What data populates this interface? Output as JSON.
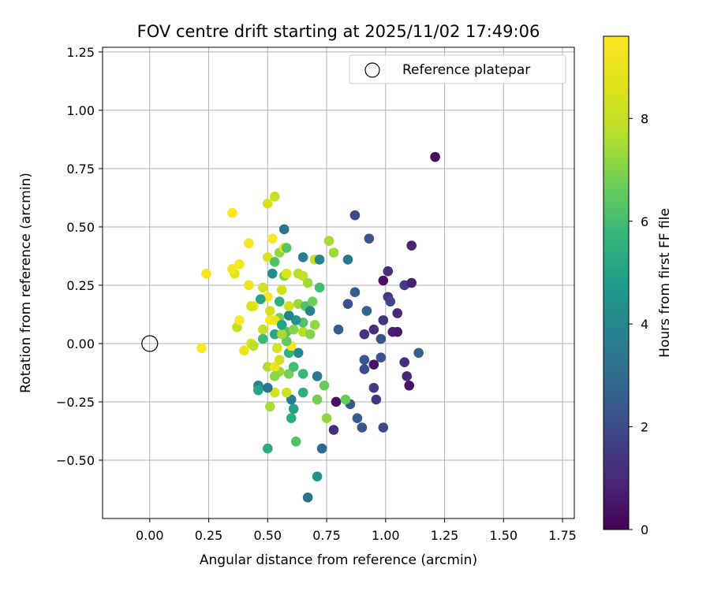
{
  "chart_data": {
    "type": "scatter",
    "title": "FOV centre drift starting at 2025/11/02 17:49:06",
    "xlabel": "Angular distance from reference (arcmin)",
    "ylabel": "Rotation from reference (arcmin)",
    "xlim": [
      -0.2,
      1.8
    ],
    "ylim": [
      -0.75,
      1.27
    ],
    "xticks": [
      "0.00",
      "0.25",
      "0.50",
      "0.75",
      "1.00",
      "1.25",
      "1.50",
      "1.75"
    ],
    "yticks": [
      "−0.50",
      "−0.25",
      "0.00",
      "0.25",
      "0.50",
      "0.75",
      "1.00",
      "1.25"
    ],
    "grid": true,
    "legend": {
      "label": "Reference platepar",
      "placement": "top-right"
    },
    "reference_point": {
      "x": 0.0,
      "y": 0.0
    },
    "colorbar": {
      "label": "Hours from first FF file",
      "colormap": "viridis",
      "range": [
        0,
        9.6
      ],
      "ticks": [
        "0",
        "2",
        "4",
        "6",
        "8"
      ]
    },
    "points": [
      {
        "x": 1.21,
        "y": 0.8,
        "h": 0.3
      },
      {
        "x": 0.87,
        "y": 0.55,
        "h": 2.0
      },
      {
        "x": 0.93,
        "y": 0.45,
        "h": 2.3
      },
      {
        "x": 1.11,
        "y": 0.42,
        "h": 0.9
      },
      {
        "x": 1.01,
        "y": 0.31,
        "h": 1.1
      },
      {
        "x": 0.99,
        "y": 0.27,
        "h": 0.4
      },
      {
        "x": 1.08,
        "y": 0.25,
        "h": 1.6
      },
      {
        "x": 1.11,
        "y": 0.26,
        "h": 0.8
      },
      {
        "x": 1.01,
        "y": 0.2,
        "h": 1.5
      },
      {
        "x": 1.02,
        "y": 0.18,
        "h": 1.9
      },
      {
        "x": 0.84,
        "y": 0.17,
        "h": 2.1
      },
      {
        "x": 0.87,
        "y": 0.22,
        "h": 2.6
      },
      {
        "x": 0.92,
        "y": 0.14,
        "h": 2.8
      },
      {
        "x": 1.05,
        "y": 0.13,
        "h": 1.0
      },
      {
        "x": 0.99,
        "y": 0.1,
        "h": 1.3
      },
      {
        "x": 0.95,
        "y": 0.06,
        "h": 1.2
      },
      {
        "x": 1.03,
        "y": 0.05,
        "h": 0.7
      },
      {
        "x": 1.05,
        "y": 0.05,
        "h": 0.6
      },
      {
        "x": 0.91,
        "y": 0.04,
        "h": 1.3
      },
      {
        "x": 0.98,
        "y": 0.02,
        "h": 2.2
      },
      {
        "x": 1.14,
        "y": -0.04,
        "h": 2.6
      },
      {
        "x": 0.91,
        "y": -0.07,
        "h": 2.4
      },
      {
        "x": 0.95,
        "y": -0.09,
        "h": 0.5
      },
      {
        "x": 0.91,
        "y": -0.11,
        "h": 2.0
      },
      {
        "x": 0.98,
        "y": -0.06,
        "h": 2.2
      },
      {
        "x": 1.08,
        "y": -0.08,
        "h": 1.2
      },
      {
        "x": 1.09,
        "y": -0.14,
        "h": 0.9
      },
      {
        "x": 1.1,
        "y": -0.18,
        "h": 0.5
      },
      {
        "x": 0.95,
        "y": -0.19,
        "h": 1.6
      },
      {
        "x": 0.96,
        "y": -0.24,
        "h": 1.4
      },
      {
        "x": 0.85,
        "y": -0.26,
        "h": 2.4
      },
      {
        "x": 0.79,
        "y": -0.25,
        "h": 0.4
      },
      {
        "x": 0.88,
        "y": -0.32,
        "h": 2.5
      },
      {
        "x": 0.9,
        "y": -0.36,
        "h": 2.3
      },
      {
        "x": 0.99,
        "y": -0.36,
        "h": 2.0
      },
      {
        "x": 0.78,
        "y": -0.37,
        "h": 1.2
      },
      {
        "x": 0.73,
        "y": -0.45,
        "h": 3.0
      },
      {
        "x": 0.71,
        "y": -0.57,
        "h": 4.5
      },
      {
        "x": 0.67,
        "y": -0.66,
        "h": 3.3
      },
      {
        "x": 0.62,
        "y": -0.42,
        "h": 6.2
      },
      {
        "x": 0.5,
        "y": -0.45,
        "h": 5.3
      },
      {
        "x": 0.6,
        "y": -0.32,
        "h": 5.4
      },
      {
        "x": 0.61,
        "y": -0.28,
        "h": 5.0
      },
      {
        "x": 0.6,
        "y": -0.24,
        "h": 3.6
      },
      {
        "x": 0.71,
        "y": -0.24,
        "h": 6.8
      },
      {
        "x": 0.75,
        "y": -0.32,
        "h": 7.2
      },
      {
        "x": 0.83,
        "y": -0.24,
        "h": 6.6
      },
      {
        "x": 0.74,
        "y": -0.18,
        "h": 6.6
      },
      {
        "x": 0.71,
        "y": -0.14,
        "h": 3.5
      },
      {
        "x": 0.65,
        "y": -0.21,
        "h": 5.4
      },
      {
        "x": 0.65,
        "y": -0.13,
        "h": 5.8
      },
      {
        "x": 0.51,
        "y": -0.27,
        "h": 7.5
      },
      {
        "x": 0.53,
        "y": -0.21,
        "h": 8.4
      },
      {
        "x": 0.58,
        "y": -0.21,
        "h": 8.2
      },
      {
        "x": 0.46,
        "y": -0.18,
        "h": 4.0
      },
      {
        "x": 0.46,
        "y": -0.2,
        "h": 5.0
      },
      {
        "x": 0.5,
        "y": -0.19,
        "h": 3.3
      },
      {
        "x": 0.55,
        "y": -0.12,
        "h": 7.4
      },
      {
        "x": 0.59,
        "y": -0.13,
        "h": 6.8
      },
      {
        "x": 0.61,
        "y": -0.1,
        "h": 6.0
      },
      {
        "x": 0.5,
        "y": -0.1,
        "h": 7.6
      },
      {
        "x": 0.53,
        "y": -0.1,
        "h": 9.2
      },
      {
        "x": 0.55,
        "y": -0.07,
        "h": 8.3
      },
      {
        "x": 0.63,
        "y": -0.04,
        "h": 4.1
      },
      {
        "x": 0.59,
        "y": -0.04,
        "h": 5.6
      },
      {
        "x": 0.54,
        "y": -0.02,
        "h": 8.5
      },
      {
        "x": 0.6,
        "y": -0.01,
        "h": 9.4
      },
      {
        "x": 0.58,
        "y": 0.01,
        "h": 6.5
      },
      {
        "x": 0.53,
        "y": 0.04,
        "h": 5.2
      },
      {
        "x": 0.58,
        "y": 0.05,
        "h": 6.3
      },
      {
        "x": 0.61,
        "y": 0.06,
        "h": 7.0
      },
      {
        "x": 0.65,
        "y": 0.05,
        "h": 7.7
      },
      {
        "x": 0.68,
        "y": 0.04,
        "h": 7.0
      },
      {
        "x": 0.7,
        "y": 0.08,
        "h": 7.2
      },
      {
        "x": 0.65,
        "y": 0.09,
        "h": 6.2
      },
      {
        "x": 0.62,
        "y": 0.1,
        "h": 4.5
      },
      {
        "x": 0.59,
        "y": 0.12,
        "h": 3.8
      },
      {
        "x": 0.55,
        "y": 0.11,
        "h": 6.8
      },
      {
        "x": 0.51,
        "y": 0.1,
        "h": 9.6
      },
      {
        "x": 0.53,
        "y": 0.1,
        "h": 9.0
      },
      {
        "x": 0.59,
        "y": 0.16,
        "h": 8.2
      },
      {
        "x": 0.63,
        "y": 0.17,
        "h": 7.3
      },
      {
        "x": 0.66,
        "y": 0.16,
        "h": 6.2
      },
      {
        "x": 0.68,
        "y": 0.14,
        "h": 3.9
      },
      {
        "x": 0.69,
        "y": 0.18,
        "h": 6.7
      },
      {
        "x": 0.55,
        "y": 0.18,
        "h": 5.5
      },
      {
        "x": 0.51,
        "y": 0.14,
        "h": 8.4
      },
      {
        "x": 0.5,
        "y": 0.2,
        "h": 9.4
      },
      {
        "x": 0.47,
        "y": 0.19,
        "h": 5.1
      },
      {
        "x": 0.44,
        "y": 0.16,
        "h": 9.1
      },
      {
        "x": 0.43,
        "y": 0.16,
        "h": 8.6
      },
      {
        "x": 0.48,
        "y": 0.24,
        "h": 8.3
      },
      {
        "x": 0.42,
        "y": 0.25,
        "h": 9.2
      },
      {
        "x": 0.36,
        "y": 0.3,
        "h": 8.8
      },
      {
        "x": 0.35,
        "y": 0.32,
        "h": 9.3
      },
      {
        "x": 0.38,
        "y": 0.34,
        "h": 9.5
      },
      {
        "x": 0.24,
        "y": 0.3,
        "h": 9.4
      },
      {
        "x": 0.35,
        "y": 0.56,
        "h": 9.6
      },
      {
        "x": 0.42,
        "y": 0.43,
        "h": 9.4
      },
      {
        "x": 0.5,
        "y": 0.37,
        "h": 8.6
      },
      {
        "x": 0.53,
        "y": 0.35,
        "h": 6.2
      },
      {
        "x": 0.52,
        "y": 0.3,
        "h": 4.2
      },
      {
        "x": 0.57,
        "y": 0.29,
        "h": 7.0
      },
      {
        "x": 0.58,
        "y": 0.3,
        "h": 8.6
      },
      {
        "x": 0.63,
        "y": 0.3,
        "h": 7.7
      },
      {
        "x": 0.65,
        "y": 0.29,
        "h": 8.0
      },
      {
        "x": 0.67,
        "y": 0.26,
        "h": 7.4
      },
      {
        "x": 0.72,
        "y": 0.24,
        "h": 6.0
      },
      {
        "x": 0.7,
        "y": 0.36,
        "h": 8.1
      },
      {
        "x": 0.72,
        "y": 0.36,
        "h": 3.9
      },
      {
        "x": 0.65,
        "y": 0.37,
        "h": 3.6
      },
      {
        "x": 0.55,
        "y": 0.39,
        "h": 7.2
      },
      {
        "x": 0.57,
        "y": 0.41,
        "h": 8.9
      },
      {
        "x": 0.58,
        "y": 0.41,
        "h": 6.3
      },
      {
        "x": 0.52,
        "y": 0.45,
        "h": 9.5
      },
      {
        "x": 0.57,
        "y": 0.49,
        "h": 3.4
      },
      {
        "x": 0.76,
        "y": 0.44,
        "h": 7.5
      },
      {
        "x": 0.78,
        "y": 0.39,
        "h": 7.4
      },
      {
        "x": 0.84,
        "y": 0.36,
        "h": 3.5
      },
      {
        "x": 0.5,
        "y": 0.6,
        "h": 8.5
      },
      {
        "x": 0.53,
        "y": 0.63,
        "h": 8.1
      },
      {
        "x": 0.22,
        "y": -0.02,
        "h": 9.5
      },
      {
        "x": 0.4,
        "y": -0.03,
        "h": 9.1
      },
      {
        "x": 0.43,
        "y": 0.0,
        "h": 8.5
      },
      {
        "x": 0.44,
        "y": -0.01,
        "h": 7.8
      },
      {
        "x": 0.37,
        "y": 0.07,
        "h": 8.0
      },
      {
        "x": 0.38,
        "y": 0.1,
        "h": 9.6
      },
      {
        "x": 0.48,
        "y": 0.06,
        "h": 8.0
      },
      {
        "x": 0.48,
        "y": 0.02,
        "h": 5.9
      },
      {
        "x": 0.56,
        "y": 0.23,
        "h": 8.3
      },
      {
        "x": 0.56,
        "y": 0.04,
        "h": 7.5
      },
      {
        "x": 0.8,
        "y": 0.06,
        "h": 2.5
      },
      {
        "x": 0.53,
        "y": -0.14,
        "h": 7.1
      },
      {
        "x": 0.56,
        "y": 0.08,
        "h": 5.0
      }
    ]
  }
}
